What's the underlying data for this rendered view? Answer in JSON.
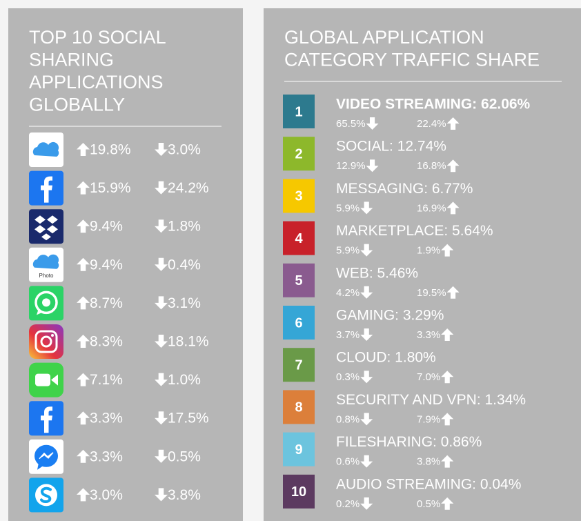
{
  "left_panel": {
    "title_lines": [
      "TOP 10 SOCIAL",
      "SHARING",
      "APPLICATIONS",
      "GLOBALLY"
    ],
    "rows": [
      {
        "up": "19.8%",
        "down": "3.0%"
      },
      {
        "up": "15.9%",
        "down": "24.2%"
      },
      {
        "up": "9.4%",
        "down": "1.8%"
      },
      {
        "up": "9.4%",
        "down": "0.4%",
        "caption": "Photo"
      },
      {
        "up": "8.7%",
        "down": "3.1%"
      },
      {
        "up": "8.3%",
        "down": "18.1%"
      },
      {
        "up": "7.1%",
        "down": "1.0%"
      },
      {
        "up": "3.3%",
        "down": "17.5%"
      },
      {
        "up": "3.3%",
        "down": "0.5%"
      },
      {
        "up": "3.0%",
        "down": "3.8%"
      }
    ]
  },
  "right_panel": {
    "title_lines": [
      "GLOBAL APPLICATION",
      "CATEGORY TRAFFIC SHARE"
    ],
    "rows": [
      {
        "rank": "1",
        "label": "VIDEO STREAMING: 62.06%",
        "down": "65.5%",
        "up": "22.4%",
        "color": "#2d7a8e"
      },
      {
        "rank": "2",
        "label": "SOCIAL: 12.74%",
        "down": "12.9%",
        "up": "16.8%",
        "color": "#8db82b"
      },
      {
        "rank": "3",
        "label": "MESSAGING: 6.77%",
        "down": "5.9%",
        "up": "16.9%",
        "color": "#f6c800"
      },
      {
        "rank": "4",
        "label": "MARKETPLACE: 5.64%",
        "down": "5.9%",
        "up": "1.9%",
        "color": "#c8212a"
      },
      {
        "rank": "5",
        "label": "WEB: 5.46%",
        "down": "4.2%",
        "up": "19.5%",
        "color": "#8a5b8f"
      },
      {
        "rank": "6",
        "label": "GAMING: 3.29%",
        "down": "3.7%",
        "up": "3.3%",
        "color": "#35a6d6"
      },
      {
        "rank": "7",
        "label": "CLOUD: 1.80%",
        "down": "0.3%",
        "up": "7.0%",
        "color": "#6a9a48"
      },
      {
        "rank": "8",
        "label": "SECURITY AND VPN: 1.34%",
        "down": "0.8%",
        "up": "7.9%",
        "color": "#dc7f3a"
      },
      {
        "rank": "9",
        "label": "FILESHARING: 0.86%",
        "down": "0.6%",
        "up": "3.8%",
        "color": "#6cc4de"
      },
      {
        "rank": "10",
        "label": "AUDIO STREAMING: 0.04%",
        "down": "0.2%",
        "up": "0.5%",
        "color": "#5c3a60"
      }
    ]
  }
}
